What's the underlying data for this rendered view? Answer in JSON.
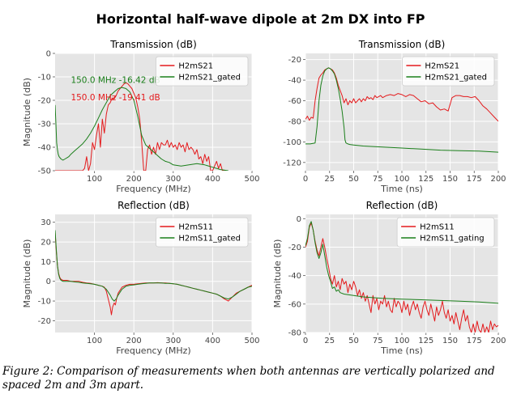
{
  "figure": {
    "suptitle": "Horizontal half-wave dipole at 2m DX into FP",
    "caption": "Figure 2: Comparison of measurements when both antennas are vertically polarized and spaced 2m and 3m apart."
  },
  "colors": {
    "red": "#e41a1c",
    "green": "#1b7f1b",
    "plot_bg": "#e5e5e5",
    "grid": "#ffffff"
  },
  "chart_data": [
    {
      "id": "tl",
      "type": "line",
      "title": "Transmission (dB)",
      "xlabel": "Frequency (MHz)",
      "ylabel": "Magnitude (dB)",
      "xlim": [
        0,
        500
      ],
      "ylim": [
        -50,
        0
      ],
      "xticks": [
        100,
        200,
        300,
        400,
        500
      ],
      "yticks": [
        0,
        -10,
        -20,
        -30,
        -40,
        -50
      ],
      "legend": "top-right",
      "annotations": [
        {
          "text": "150.0  MHz  -16.42  dB",
          "color": "#1b7f1b"
        },
        {
          "text": "150.0  MHz  -19.41  dB",
          "color": "#e41a1c"
        }
      ],
      "series": [
        {
          "name": "H2mS21",
          "color": "#e41a1c",
          "x": [
            0,
            5,
            10,
            15,
            20,
            25,
            30,
            35,
            40,
            45,
            50,
            55,
            60,
            65,
            70,
            75,
            80,
            85,
            90,
            95,
            100,
            105,
            110,
            115,
            120,
            125,
            130,
            135,
            140,
            145,
            150,
            155,
            160,
            165,
            170,
            175,
            180,
            185,
            190,
            195,
            200,
            205,
            210,
            215,
            220,
            225,
            230,
            235,
            240,
            245,
            250,
            255,
            260,
            265,
            270,
            275,
            280,
            285,
            290,
            295,
            300,
            305,
            310,
            315,
            320,
            325,
            330,
            335,
            340,
            345,
            350,
            355,
            360,
            365,
            370,
            375,
            380,
            385,
            390,
            395,
            400,
            405,
            410,
            415,
            420,
            425,
            430,
            435
          ],
          "y": [
            -50,
            -50,
            -50,
            -50,
            -50,
            -50,
            -50,
            -50,
            -50,
            -50,
            -50,
            -50,
            -50,
            -50,
            -50,
            -49,
            -44,
            -50,
            -47,
            -38,
            -41,
            -35,
            -30,
            -40,
            -28,
            -34,
            -26,
            -22,
            -21,
            -19,
            -19.4,
            -18,
            -16,
            -15,
            -14,
            -13,
            -12.5,
            -13,
            -14,
            -15,
            -17,
            -19,
            -23,
            -28,
            -38,
            -50,
            -50,
            -41,
            -39,
            -43,
            -40,
            -43,
            -38,
            -41,
            -38,
            -39,
            -39,
            -37,
            -40,
            -38,
            -40,
            -39,
            -41,
            -38,
            -40,
            -39,
            -42,
            -38,
            -41,
            -40,
            -41,
            -43,
            -41,
            -45,
            -44,
            -47,
            -43,
            -46,
            -44,
            -50,
            -50,
            -48,
            -46,
            -49,
            -47,
            -50,
            -50,
            -50
          ]
        },
        {
          "name": "H2mS21_gated",
          "color": "#1b7f1b",
          "x": [
            0,
            2,
            4,
            6,
            8,
            10,
            15,
            20,
            25,
            30,
            35,
            40,
            50,
            60,
            70,
            80,
            90,
            100,
            110,
            120,
            130,
            140,
            150,
            160,
            170,
            180,
            190,
            200,
            210,
            220,
            230,
            240,
            250,
            260,
            270,
            280,
            290,
            300,
            320,
            340,
            360,
            380,
            400,
            420,
            440
          ],
          "y": [
            -22,
            -30,
            -38,
            -41,
            -43,
            -44,
            -45,
            -45.5,
            -45,
            -44.5,
            -44,
            -43,
            -41.5,
            -40,
            -38.5,
            -36.5,
            -34,
            -31,
            -27.5,
            -24,
            -21,
            -18,
            -16.4,
            -15,
            -14.5,
            -15,
            -16.5,
            -20,
            -27,
            -35,
            -39,
            -40.5,
            -42,
            -43.5,
            -45,
            -46,
            -46.5,
            -47.5,
            -48,
            -47.5,
            -47,
            -47.5,
            -48.5,
            -49.5,
            -50
          ]
        }
      ]
    },
    {
      "id": "tr",
      "type": "line",
      "title": "Transmission (dB)",
      "xlabel": "Time (ns)",
      "ylabel": "",
      "xlim": [
        0,
        200
      ],
      "ylim": [
        -128,
        -14
      ],
      "xticks": [
        0,
        25,
        50,
        75,
        100,
        125,
        150,
        175,
        200
      ],
      "yticks": [
        -20,
        -40,
        -60,
        -80,
        -100,
        -120
      ],
      "legend": "top-right",
      "series": [
        {
          "name": "H2mS21",
          "color": "#e41a1c",
          "x": [
            0,
            2,
            4,
            6,
            8,
            10,
            12,
            14,
            16,
            18,
            20,
            22,
            24,
            26,
            28,
            30,
            32,
            34,
            36,
            38,
            40,
            42,
            44,
            46,
            48,
            50,
            52,
            54,
            56,
            58,
            60,
            62,
            64,
            66,
            68,
            70,
            72,
            74,
            76,
            78,
            80,
            84,
            88,
            92,
            96,
            100,
            104,
            108,
            112,
            116,
            120,
            124,
            128,
            132,
            136,
            140,
            144,
            148,
            152,
            156,
            160,
            164,
            168,
            172,
            176,
            180,
            184,
            188,
            192,
            196,
            200
          ],
          "y": [
            -78,
            -75,
            -79,
            -76,
            -77,
            -60,
            -48,
            -38,
            -35,
            -33,
            -30,
            -29,
            -28,
            -29,
            -30,
            -33,
            -38,
            -45,
            -50,
            -55,
            -62,
            -58,
            -64,
            -60,
            -62,
            -58,
            -62,
            -60,
            -58,
            -61,
            -58,
            -60,
            -56,
            -58,
            -57,
            -59,
            -55,
            -57,
            -56,
            -55,
            -57,
            -55,
            -54,
            -55,
            -53,
            -54,
            -56,
            -54,
            -55,
            -58,
            -61,
            -60,
            -63,
            -62,
            -66,
            -69,
            -68,
            -70,
            -57,
            -55,
            -55,
            -56,
            -56,
            -57,
            -56,
            -60,
            -65,
            -68,
            -72,
            -76,
            -80
          ]
        },
        {
          "name": "H2mS21_gated",
          "color": "#1b7f1b",
          "x": [
            0,
            5,
            10,
            12,
            14,
            16,
            18,
            20,
            22,
            24,
            26,
            28,
            30,
            32,
            34,
            36,
            38,
            40,
            41,
            42,
            44,
            46,
            50,
            60,
            80,
            100,
            120,
            140,
            160,
            180,
            200
          ],
          "y": [
            -102,
            -102,
            -101,
            -85,
            -60,
            -45,
            -36,
            -31,
            -29,
            -28,
            -29,
            -31,
            -34,
            -40,
            -48,
            -58,
            -70,
            -86,
            -98,
            -101,
            -102,
            -102.5,
            -103,
            -104,
            -105,
            -106,
            -107,
            -108,
            -108.5,
            -109,
            -110
          ]
        }
      ]
    },
    {
      "id": "bl",
      "type": "line",
      "title": "Reflection (dB)",
      "xlabel": "Frequency (MHz)",
      "ylabel": "Magnitude (dB)",
      "xlim": [
        0,
        500
      ],
      "ylim": [
        -26,
        34
      ],
      "xticks": [
        100,
        200,
        300,
        400,
        500
      ],
      "yticks": [
        30,
        20,
        10,
        0,
        -10,
        -20
      ],
      "legend": "top-right",
      "series": [
        {
          "name": "H2mS11",
          "color": "#e41a1c",
          "x": [
            0,
            3,
            6,
            9,
            12,
            15,
            20,
            30,
            40,
            50,
            60,
            70,
            80,
            90,
            100,
            110,
            120,
            125,
            130,
            135,
            140,
            143,
            146,
            150,
            153,
            156,
            160,
            170,
            180,
            190,
            200,
            210,
            220,
            230,
            240,
            250,
            260,
            270,
            280,
            290,
            300,
            310,
            320,
            330,
            340,
            350,
            360,
            370,
            380,
            390,
            400,
            410,
            420,
            430,
            440,
            450,
            460,
            470,
            480,
            490,
            500
          ],
          "y": [
            25,
            15,
            8,
            4,
            2,
            1,
            0.5,
            0.5,
            0,
            0,
            0,
            -0.5,
            -0.8,
            -1,
            -1.5,
            -2,
            -2.5,
            -3,
            -5,
            -9,
            -13,
            -17,
            -13,
            -11,
            -12,
            -9,
            -6,
            -3,
            -2,
            -1.5,
            -1.5,
            -1.2,
            -1,
            -0.8,
            -0.8,
            -0.8,
            -0.7,
            -0.8,
            -0.8,
            -1,
            -1.2,
            -1.5,
            -2,
            -2.5,
            -3,
            -3.5,
            -4,
            -4.5,
            -5,
            -5.5,
            -6,
            -6.5,
            -7.5,
            -9,
            -10,
            -8,
            -6,
            -5,
            -4,
            -3,
            -2
          ]
        },
        {
          "name": "H2mS11_gated",
          "color": "#1b7f1b",
          "x": [
            0,
            3,
            6,
            9,
            12,
            15,
            20,
            30,
            40,
            50,
            60,
            70,
            80,
            90,
            100,
            110,
            120,
            130,
            140,
            145,
            150,
            155,
            160,
            170,
            180,
            190,
            200,
            210,
            220,
            230,
            240,
            250,
            260,
            270,
            280,
            290,
            300,
            310,
            320,
            330,
            340,
            350,
            360,
            370,
            380,
            390,
            400,
            410,
            420,
            430,
            440,
            450,
            460,
            470,
            480,
            490,
            500
          ],
          "y": [
            26,
            16,
            8,
            3.5,
            1.5,
            0.5,
            0,
            0,
            0,
            -0.3,
            -0.5,
            -0.8,
            -1,
            -1.2,
            -1.5,
            -2,
            -2.5,
            -4,
            -7,
            -9,
            -10,
            -9,
            -7,
            -4,
            -2.5,
            -2,
            -1.8,
            -1.5,
            -1.2,
            -1,
            -0.8,
            -0.8,
            -0.8,
            -0.8,
            -1,
            -1,
            -1.2,
            -1.5,
            -2,
            -2.5,
            -3,
            -3.5,
            -4,
            -4.5,
            -5,
            -5.5,
            -6,
            -6.5,
            -7.5,
            -8.5,
            -9,
            -8,
            -6.5,
            -5,
            -4,
            -3,
            -2.5
          ]
        }
      ]
    },
    {
      "id": "br",
      "type": "line",
      "title": "Reflection (dB)",
      "xlabel": "Time (ns)",
      "ylabel": "Magnitude (dB)",
      "xlim": [
        0,
        200
      ],
      "ylim": [
        -80,
        3
      ],
      "xticks": [
        0,
        25,
        50,
        75,
        100,
        125,
        150,
        175,
        200
      ],
      "yticks": [
        0,
        -20,
        -40,
        -60,
        -80
      ],
      "legend": "top-right",
      "series": [
        {
          "name": "H2mS11",
          "color": "#e41a1c",
          "x": [
            0,
            2,
            4,
            6,
            8,
            10,
            12,
            14,
            16,
            18,
            20,
            22,
            24,
            26,
            28,
            30,
            32,
            34,
            36,
            38,
            40,
            42,
            44,
            46,
            48,
            50,
            52,
            54,
            56,
            58,
            60,
            62,
            64,
            66,
            68,
            70,
            72,
            74,
            76,
            78,
            80,
            82,
            84,
            86,
            88,
            90,
            92,
            94,
            96,
            98,
            100,
            102,
            104,
            106,
            108,
            110,
            112,
            114,
            116,
            118,
            120,
            122,
            124,
            126,
            128,
            130,
            132,
            134,
            136,
            138,
            140,
            142,
            144,
            146,
            148,
            150,
            152,
            154,
            156,
            158,
            160,
            162,
            164,
            166,
            168,
            170,
            172,
            174,
            176,
            178,
            180,
            182,
            184,
            186,
            188,
            190,
            192,
            194,
            196,
            198,
            200
          ],
          "y": [
            -20,
            -16,
            -6,
            -3,
            -8,
            -16,
            -22,
            -26,
            -20,
            -14,
            -20,
            -28,
            -34,
            -42,
            -46,
            -40,
            -48,
            -44,
            -50,
            -42,
            -46,
            -44,
            -52,
            -46,
            -50,
            -44,
            -48,
            -54,
            -50,
            -56,
            -52,
            -58,
            -54,
            -60,
            -66,
            -54,
            -60,
            -56,
            -64,
            -58,
            -60,
            -54,
            -62,
            -58,
            -64,
            -66,
            -56,
            -62,
            -58,
            -60,
            -66,
            -58,
            -64,
            -60,
            -68,
            -62,
            -58,
            -64,
            -60,
            -66,
            -70,
            -62,
            -58,
            -64,
            -68,
            -60,
            -66,
            -72,
            -62,
            -68,
            -64,
            -58,
            -66,
            -70,
            -64,
            -72,
            -68,
            -74,
            -66,
            -72,
            -78,
            -70,
            -64,
            -72,
            -68,
            -76,
            -80,
            -74,
            -80,
            -72,
            -78,
            -80,
            -74,
            -80,
            -76,
            -80,
            -72,
            -78,
            -74,
            -76,
            -75
          ]
        },
        {
          "name": "H2mS11_gating",
          "color": "#1b7f1b",
          "x": [
            0,
            2,
            4,
            6,
            8,
            10,
            12,
            14,
            16,
            18,
            20,
            22,
            24,
            26,
            28,
            30,
            32,
            34,
            36,
            40,
            50,
            60,
            80,
            100,
            120,
            140,
            160,
            180,
            200
          ],
          "y": [
            -19,
            -14,
            -5,
            -2,
            -8,
            -17,
            -24,
            -28,
            -24,
            -18,
            -26,
            -34,
            -40,
            -44,
            -49,
            -48,
            -51,
            -50,
            -52,
            -53,
            -54,
            -55,
            -56,
            -56.5,
            -57,
            -57.5,
            -58,
            -58.5,
            -59.5
          ]
        }
      ]
    }
  ]
}
